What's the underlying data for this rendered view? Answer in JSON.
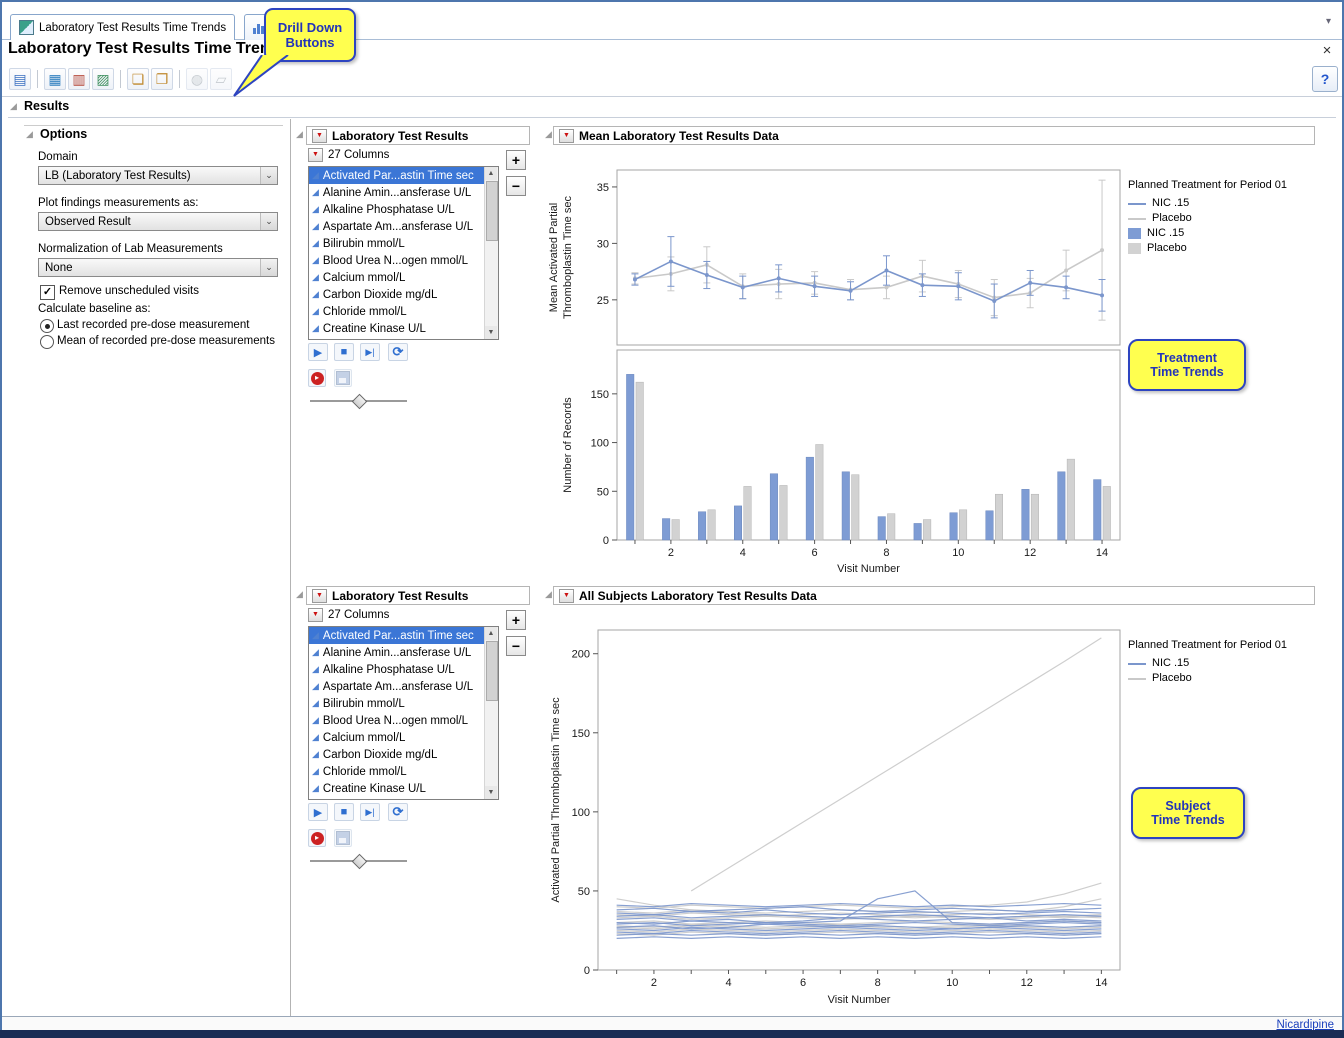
{
  "window": {
    "tab_title": "Laboratory Test Results Time Trends",
    "page_title": "Laboratory Test Results Time Trends",
    "results_header": "Results",
    "status_link": "Nicardipine"
  },
  "icons": {
    "close": "×",
    "help": "?",
    "tab_overflow": "▾",
    "chevron_down": "⌄",
    "outline_open": "◢",
    "red_triangle": "▼",
    "continuous_column": "◢",
    "check": "✓",
    "plus": "+",
    "minus": "−",
    "play": "▶",
    "stop": "■",
    "step": "▶|",
    "loop": "⟳",
    "record_arrow": "▸",
    "scroll_up": "▲",
    "scroll_down": "▼"
  },
  "toolbar": {
    "icons": [
      {
        "name": "report-window-icon",
        "glyph": "▤",
        "color": "#3a6fc0"
      },
      {
        "sep": true
      },
      {
        "name": "data-table-icon",
        "glyph": "▦",
        "color": "#2f7fbf"
      },
      {
        "name": "journal-icon",
        "glyph": "▥",
        "color": "#b5483a"
      },
      {
        "name": "save-script-icon",
        "glyph": "▨",
        "color": "#3f8f5f"
      },
      {
        "sep": true
      },
      {
        "name": "notes-window-icon",
        "glyph": "❏",
        "color": "#c08a2f"
      },
      {
        "name": "report-notes-icon",
        "glyph": "❐",
        "color": "#c08a2f"
      },
      {
        "sep": true
      },
      {
        "name": "web-report-icon",
        "glyph": "◍",
        "color": "#9aa4ad",
        "disabled": true
      },
      {
        "name": "annotation-icon",
        "glyph": "▱",
        "color": "#9aa4ad",
        "disabled": true
      }
    ]
  },
  "callouts": {
    "drill_down_line1": "Drill Down",
    "drill_down_line2": "Buttons",
    "treatment_line1": "Treatment",
    "treatment_line2": "Time Trends",
    "subject_line1": "Subject",
    "subject_line2": "Time Trends"
  },
  "options": {
    "header": "Options",
    "domain_label": "Domain",
    "domain_value": "LB (Laboratory Test Results)",
    "plot_label": "Plot findings measurements as:",
    "plot_value": "Observed Result",
    "norm_label": "Normalization of Lab Measurements",
    "norm_value": "None",
    "checkbox_label": "Remove unscheduled visits",
    "checkbox_checked": true,
    "baseline_label": "Calculate baseline as:",
    "radio1_label": "Last recorded pre-dose measurement",
    "radio2_label": "Mean of recorded pre-dose measurements",
    "baseline_selected": "last"
  },
  "column_panel": {
    "header": "Laboratory Test Results",
    "columns_label": "27 Columns",
    "slider_pct": 50,
    "items": [
      {
        "label": "Activated Par...astin Time sec",
        "selected": true
      },
      {
        "label": "Alanine Amin...ansferase U/L"
      },
      {
        "label": "Alkaline Phosphatase U/L"
      },
      {
        "label": "Aspartate Am...ansferase U/L"
      },
      {
        "label": "Bilirubin mmol/L"
      },
      {
        "label": "Blood Urea N...ogen mmol/L"
      },
      {
        "label": "Calcium mmol/L"
      },
      {
        "label": "Carbon Dioxide mg/dL"
      },
      {
        "label": "Chloride mmol/L"
      },
      {
        "label": "Creatine Kinase U/L"
      }
    ]
  },
  "charts": {
    "mean_title": "Mean Laboratory Test Results Data",
    "subjects_title": "All Subjects Laboratory Test Results Data",
    "legend_title": "Planned Treatment for Period 01",
    "legend_nic": "NIC .15",
    "legend_placebo": "Placebo"
  },
  "colors": {
    "nic_line": "#7b96cc",
    "placebo_line": "#c9c9c9",
    "nic_bar": "#7e9cd4",
    "placebo_bar": "#d2d2d2"
  },
  "chart_data": [
    {
      "type": "line",
      "title": "Mean Laboratory Test Results Data",
      "x": [
        1,
        2,
        3,
        4,
        5,
        6,
        7,
        8,
        9,
        10,
        11,
        12,
        13,
        14
      ],
      "xticks": [
        2,
        4,
        6,
        8,
        10,
        12,
        14
      ],
      "xlabel": "Visit Number",
      "ylabel": "Mean Activated Partial Thromboplastin Time sec",
      "ylabel_lines": [
        "Mean Activated Partial",
        "Thromboplastin Time sec"
      ],
      "ylim": [
        21,
        36.5
      ],
      "yticks": [
        25,
        30,
        35
      ],
      "legend_title": "Planned Treatment for Period 01",
      "legend_position": "right",
      "error_bars": true,
      "series": [
        {
          "name": "NIC .15",
          "color": "#7b96cc",
          "values": [
            26.8,
            28.4,
            27.2,
            26.1,
            26.9,
            26.2,
            25.8,
            27.6,
            26.3,
            26.2,
            24.9,
            26.5,
            26.1,
            25.4
          ],
          "errors": [
            0.5,
            2.2,
            1.2,
            1.0,
            1.2,
            0.9,
            0.8,
            1.3,
            1.0,
            1.2,
            1.5,
            1.1,
            1.0,
            1.4
          ]
        },
        {
          "name": "Placebo",
          "color": "#c9c9c9",
          "values": [
            26.9,
            27.3,
            28.1,
            26.2,
            26.4,
            26.5,
            25.9,
            26.1,
            27.1,
            26.4,
            25.2,
            25.6,
            27.6,
            29.4
          ],
          "errors": [
            0.5,
            1.5,
            1.6,
            1.1,
            1.3,
            1.0,
            0.9,
            1.0,
            1.4,
            1.2,
            1.6,
            1.3,
            1.8,
            6.2
          ]
        }
      ]
    },
    {
      "type": "bar",
      "categories": [
        1,
        2,
        3,
        4,
        5,
        6,
        7,
        8,
        9,
        10,
        11,
        12,
        13,
        14
      ],
      "xticks": [
        2,
        4,
        6,
        8,
        10,
        12,
        14
      ],
      "xlabel": "Visit Number",
      "ylabel": "Number of Records",
      "ylim": [
        0,
        195
      ],
      "yticks": [
        0,
        50,
        100,
        150
      ],
      "series": [
        {
          "name": "NIC .15",
          "color": "#7e9cd4",
          "values": [
            170,
            22,
            29,
            35,
            68,
            85,
            70,
            24,
            17,
            28,
            30,
            52,
            70,
            62
          ]
        },
        {
          "name": "Placebo",
          "color": "#d2d2d2",
          "values": [
            162,
            21,
            31,
            55,
            56,
            98,
            67,
            27,
            21,
            31,
            47,
            47,
            83,
            55
          ]
        }
      ]
    },
    {
      "type": "line",
      "title": "All Subjects Laboratory Test Results Data",
      "x": [
        1,
        2,
        3,
        4,
        5,
        6,
        7,
        8,
        9,
        10,
        11,
        12,
        13,
        14
      ],
      "xticks": [
        2,
        4,
        6,
        8,
        10,
        12,
        14
      ],
      "xlabel": "Visit Number",
      "ylabel": "Activated Partial Thromboplastin Time sec",
      "ylim": [
        0,
        215
      ],
      "yticks": [
        0,
        50,
        100,
        150,
        200
      ],
      "legend_title": "Planned Treatment for Period 01",
      "legend_position": "right",
      "series": [
        {
          "name": "Placebo",
          "color": "#c9c9c9",
          "lines": [
            [
              45,
              41,
              38,
              36,
              35,
              34,
              33,
              34,
              33,
              34,
              33,
              34,
              33,
              34
            ],
            [
              28,
              27,
              29,
              28,
              27,
              28,
              29,
              28,
              27,
              28,
              29,
              28,
              27,
              28
            ],
            [
              33,
              34,
              32,
              33,
              34,
              33,
              32,
              33,
              34,
              33,
              32,
              33,
              34,
              33
            ],
            [
              25,
              24,
              26,
              25,
              24,
              25,
              26,
              25,
              24,
              25,
              26,
              25,
              24,
              25
            ],
            [
              37,
              36,
              38,
              37,
              36,
              37,
              38,
              37,
              36,
              37,
              38,
              37,
              40,
              45
            ],
            [
              30,
              31,
              29,
              30,
              31,
              30,
              29,
              30,
              31,
              30,
              29,
              30,
              31,
              30
            ],
            [
              23,
              22,
              24,
              23,
              22,
              23,
              24,
              23,
              22,
              23,
              24,
              23,
              22,
              23
            ],
            [
              40,
              39,
              41,
              40,
              39,
              40,
              41,
              40,
              39,
              40,
              41,
              43,
              48,
              55
            ],
            [
              35,
              34,
              36,
              35,
              34,
              35,
              36,
              35,
              34,
              35,
              36,
              35,
              34,
              35
            ],
            [
              27,
              26,
              28,
              27,
              26,
              27,
              28,
              27,
              26,
              27,
              28,
              27,
              26,
              27
            ],
            [
              null,
              null,
              50,
              64.5,
              79,
              93.5,
              108,
              122.5,
              137,
              151.5,
              166,
              180.5,
              195,
              210
            ]
          ]
        },
        {
          "name": "NIC .15",
          "color": "#7b96cc",
          "lines": [
            [
              27,
              28,
              26,
              27,
              29,
              28,
              27,
              28,
              27,
              26,
              27,
              28,
              27,
              28
            ],
            [
              32,
              33,
              31,
              32,
              30,
              31,
              33,
              32,
              31,
              32,
              33,
              31,
              32,
              31
            ],
            [
              24,
              23,
              25,
              24,
              23,
              24,
              25,
              24,
              23,
              24,
              25,
              24,
              23,
              24
            ],
            [
              36,
              35,
              37,
              36,
              38,
              36,
              35,
              36,
              37,
              36,
              35,
              36,
              37,
              36
            ],
            [
              30,
              29,
              31,
              30,
              29,
              30,
              31,
              45,
              50,
              30,
              29,
              30,
              31,
              30
            ],
            [
              22,
              23,
              22,
              23,
              22,
              23,
              22,
              23,
              22,
              23,
              22,
              23,
              22,
              23
            ],
            [
              38,
              39,
              37,
              38,
              39,
              40,
              38,
              37,
              38,
              39,
              38,
              37,
              38,
              39
            ],
            [
              26,
              25,
              27,
              26,
              25,
              26,
              27,
              26,
              25,
              26,
              27,
              26,
              25,
              26
            ],
            [
              34,
              35,
              33,
              34,
              35,
              34,
              33,
              34,
              35,
              34,
              33,
              34,
              35,
              34
            ],
            [
              29,
              30,
              28,
              29,
              30,
              29,
              28,
              29,
              30,
              29,
              28,
              29,
              30,
              29
            ],
            [
              41,
              40,
              42,
              41,
              40,
              41,
              42,
              41,
              40,
              41,
              40,
              41,
              42,
              41
            ],
            [
              20,
              21,
              20,
              21,
              20,
              21,
              20,
              21,
              20,
              21,
              20,
              21,
              20,
              21
            ]
          ]
        }
      ]
    }
  ]
}
